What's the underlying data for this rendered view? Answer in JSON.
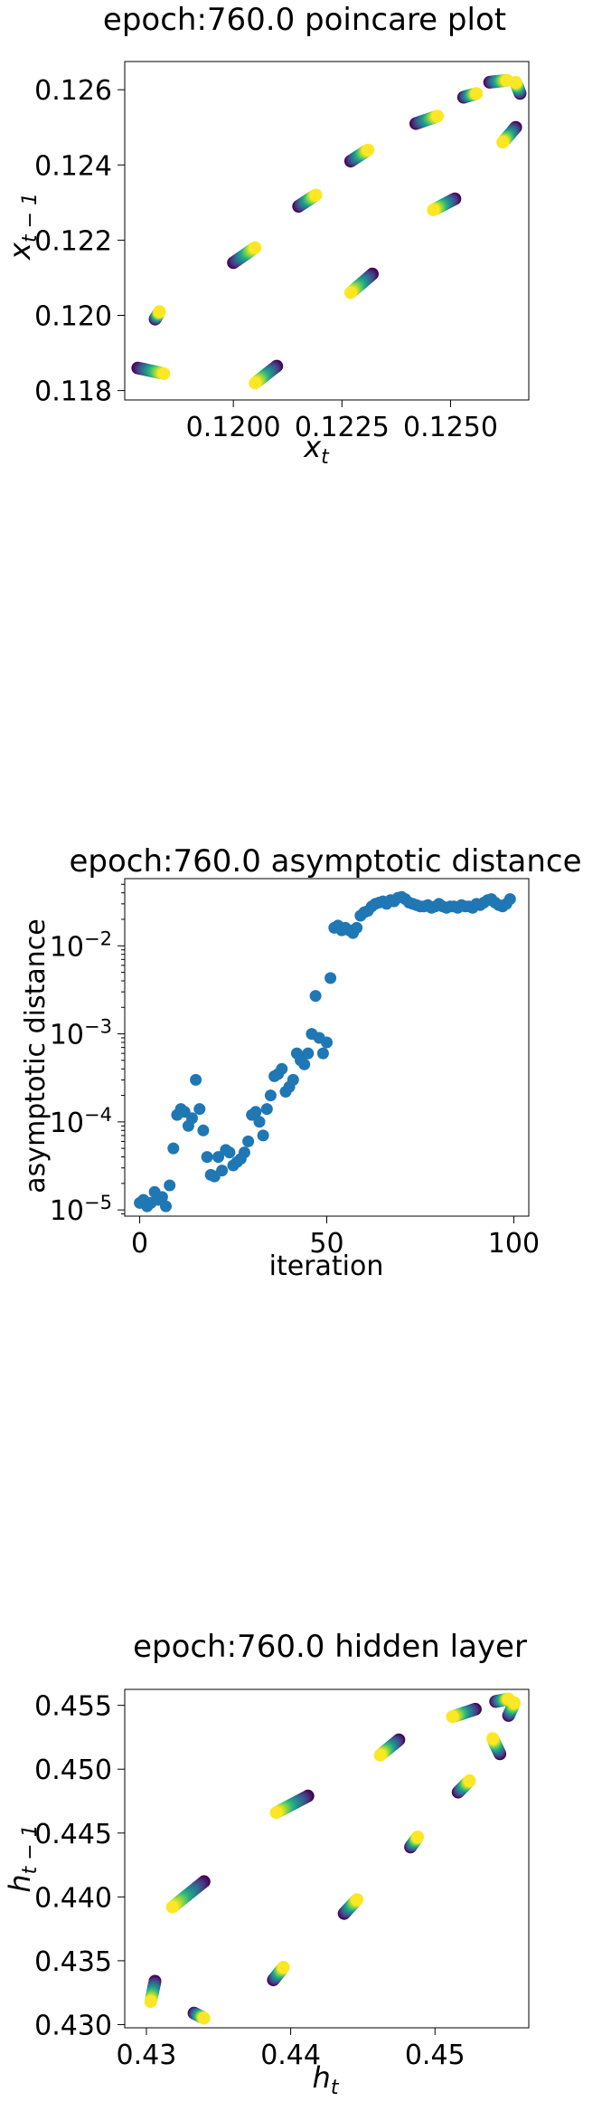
{
  "chart_data": [
    {
      "type": "scatter",
      "title": "epoch:760.0 poincare plot",
      "xlabel": "x_t",
      "ylabel": "x_{t-1}",
      "xlim": [
        0.1175,
        0.1268
      ],
      "ylim": [
        0.11775,
        0.12675
      ],
      "xticks": [
        0.12,
        0.1225,
        0.125
      ],
      "xtick_labels": [
        "0.1200",
        "0.1225",
        "0.1250"
      ],
      "yticks": [
        0.118,
        0.12,
        0.122,
        0.124,
        0.126
      ],
      "ytick_labels": [
        "0.118",
        "0.120",
        "0.122",
        "0.124",
        "0.126"
      ],
      "colormap": "viridis",
      "grid": false,
      "clusters": [
        {
          "from": [
            0.1178,
            0.1186
          ],
          "to": [
            0.1184,
            0.11845
          ]
        },
        {
          "from": [
            0.1182,
            0.1199
          ],
          "to": [
            0.1183,
            0.1201
          ]
        },
        {
          "from": [
            0.12,
            0.1214
          ],
          "to": [
            0.1205,
            0.1218
          ]
        },
        {
          "from": [
            0.121,
            0.11865
          ],
          "to": [
            0.1205,
            0.1182
          ]
        },
        {
          "from": [
            0.1215,
            0.1229
          ],
          "to": [
            0.1219,
            0.1232
          ]
        },
        {
          "from": [
            0.1232,
            0.1211
          ],
          "to": [
            0.1227,
            0.1206
          ]
        },
        {
          "from": [
            0.1227,
            0.1241
          ],
          "to": [
            0.1231,
            0.1244
          ]
        },
        {
          "from": [
            0.1242,
            0.1251
          ],
          "to": [
            0.1247,
            0.1253
          ]
        },
        {
          "from": [
            0.1251,
            0.1231
          ],
          "to": [
            0.1246,
            0.1228
          ]
        },
        {
          "from": [
            0.1253,
            0.1258
          ],
          "to": [
            0.1256,
            0.1259
          ]
        },
        {
          "from": [
            0.1265,
            0.125
          ],
          "to": [
            0.1262,
            0.1246
          ]
        },
        {
          "from": [
            0.1259,
            0.1262
          ],
          "to": [
            0.1263,
            0.12625
          ]
        },
        {
          "from": [
            0.1266,
            0.1259
          ],
          "to": [
            0.1265,
            0.1262
          ]
        }
      ]
    },
    {
      "type": "scatter",
      "title": "epoch:760.0 asymptotic distance",
      "xlabel": "iteration",
      "ylabel": "asymptotic distance",
      "xlim": [
        -4,
        104
      ],
      "ylim": [
        8.5e-06,
        0.058
      ],
      "yscale": "log",
      "xticks": [
        0,
        50,
        100
      ],
      "xtick_labels": [
        "0",
        "50",
        "100"
      ],
      "yticks": [
        1e-05,
        0.0001,
        0.001,
        0.01
      ],
      "ytick_base": "10",
      "ytick_exponents": [
        "−5",
        "−4",
        "−3",
        "−2"
      ],
      "marker_color": "#1f77b4",
      "grid": false,
      "x": [
        0,
        1,
        2,
        3,
        4,
        5,
        6,
        7,
        8,
        9,
        10,
        11,
        12,
        13,
        14,
        15,
        16,
        17,
        18,
        19,
        20,
        21,
        22,
        23,
        24,
        25,
        26,
        27,
        28,
        29,
        30,
        31,
        32,
        33,
        34,
        35,
        36,
        37,
        38,
        39,
        40,
        41,
        42,
        43,
        44,
        45,
        46,
        47,
        48,
        49,
        50,
        51,
        52,
        53,
        54,
        55,
        56,
        57,
        58,
        59,
        60,
        61,
        62,
        63,
        64,
        65,
        66,
        67,
        68,
        69,
        70,
        71,
        72,
        73,
        74,
        75,
        76,
        77,
        78,
        79,
        80,
        81,
        82,
        83,
        84,
        85,
        86,
        87,
        88,
        89,
        90,
        91,
        92,
        93,
        94,
        95,
        96,
        97,
        98,
        99
      ],
      "y": [
        1.2e-05,
        1.3e-05,
        1.1e-05,
        1.2e-05,
        1.6e-05,
        1.3e-05,
        1.4e-05,
        1.1e-05,
        1.9e-05,
        5e-05,
        0.00012,
        0.00014,
        0.00013,
        9e-05,
        0.00011,
        0.0003,
        0.00014,
        8e-05,
        4e-05,
        2.5e-05,
        2.4e-05,
        4e-05,
        2.8e-05,
        4.8e-05,
        4.5e-05,
        3.2e-05,
        3.5e-05,
        3.8e-05,
        4.5e-05,
        6e-05,
        0.00012,
        0.00013,
        0.0001,
        7e-05,
        0.00014,
        0.0002,
        0.00033,
        0.00035,
        0.0004,
        0.00022,
        0.00025,
        0.0003,
        0.0006,
        0.0005,
        0.00045,
        0.0006,
        0.001,
        0.0027,
        0.0009,
        0.0006,
        0.0008,
        0.0043,
        0.016,
        0.017,
        0.015,
        0.016,
        0.015,
        0.014,
        0.016,
        0.022,
        0.024,
        0.025,
        0.028,
        0.03,
        0.031,
        0.032,
        0.03,
        0.033,
        0.032,
        0.035,
        0.036,
        0.034,
        0.031,
        0.03,
        0.029,
        0.028,
        0.028,
        0.029,
        0.027,
        0.028,
        0.03,
        0.028,
        0.027,
        0.028,
        0.028,
        0.027,
        0.029,
        0.028,
        0.028,
        0.027,
        0.03,
        0.029,
        0.031,
        0.033,
        0.034,
        0.031,
        0.029,
        0.028,
        0.03,
        0.034
      ]
    },
    {
      "type": "scatter",
      "title": "epoch:760.0 hidden layer",
      "xlabel": "h_t",
      "ylabel": "h_{t-1}",
      "xlim": [
        0.4285,
        0.4565
      ],
      "ylim": [
        0.42975,
        0.45625
      ],
      "xticks": [
        0.43,
        0.44,
        0.45
      ],
      "xtick_labels": [
        "0.43",
        "0.44",
        "0.45"
      ],
      "yticks": [
        0.43,
        0.435,
        0.44,
        0.445,
        0.45,
        0.455
      ],
      "ytick_labels": [
        "0.430",
        "0.435",
        "0.440",
        "0.445",
        "0.450",
        "0.455"
      ],
      "colormap": "viridis",
      "grid": false,
      "clusters": [
        {
          "from": [
            0.4306,
            0.4334
          ],
          "to": [
            0.4303,
            0.4318
          ]
        },
        {
          "from": [
            0.4333,
            0.4309
          ],
          "to": [
            0.434,
            0.4305
          ]
        },
        {
          "from": [
            0.434,
            0.4412
          ],
          "to": [
            0.4318,
            0.4392
          ]
        },
        {
          "from": [
            0.4388,
            0.4335
          ],
          "to": [
            0.4395,
            0.4345
          ]
        },
        {
          "from": [
            0.4412,
            0.4479
          ],
          "to": [
            0.439,
            0.4466
          ]
        },
        {
          "from": [
            0.4437,
            0.4387
          ],
          "to": [
            0.4446,
            0.4398
          ]
        },
        {
          "from": [
            0.4483,
            0.4439
          ],
          "to": [
            0.4488,
            0.4447
          ]
        },
        {
          "from": [
            0.4475,
            0.4523
          ],
          "to": [
            0.4462,
            0.4511
          ]
        },
        {
          "from": [
            0.4528,
            0.4547
          ],
          "to": [
            0.4512,
            0.4541
          ]
        },
        {
          "from": [
            0.4516,
            0.4482
          ],
          "to": [
            0.4524,
            0.4491
          ]
        },
        {
          "from": [
            0.4545,
            0.4512
          ],
          "to": [
            0.454,
            0.4524
          ]
        },
        {
          "from": [
            0.4551,
            0.4542
          ],
          "to": [
            0.4555,
            0.4552
          ]
        },
        {
          "from": [
            0.4542,
            0.4553
          ],
          "to": [
            0.4551,
            0.4555
          ]
        }
      ]
    }
  ]
}
